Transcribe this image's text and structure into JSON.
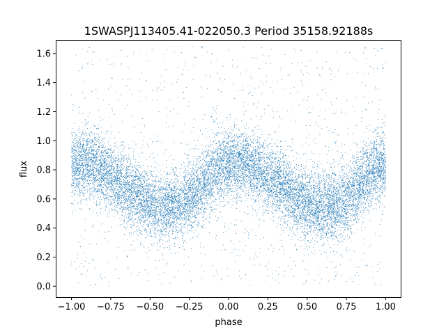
{
  "chart_data": {
    "type": "scatter",
    "title": "1SWASPJ113405.41-022050.3 Period 35158.92188s",
    "xlabel": "phase",
    "ylabel": "flux",
    "xlim": [
      -1.1,
      1.1
    ],
    "ylim": [
      -0.075,
      1.69
    ],
    "x_ticks": [
      -1.0,
      -0.75,
      -0.5,
      -0.25,
      0.0,
      0.25,
      0.5,
      0.75,
      1.0
    ],
    "x_tick_labels": [
      "−1.00",
      "−0.75",
      "−0.50",
      "−0.25",
      "0.00",
      "0.25",
      "0.50",
      "0.75",
      "1.00"
    ],
    "y_ticks": [
      0.0,
      0.2,
      0.4,
      0.6,
      0.8,
      1.0,
      1.2,
      1.4,
      1.6
    ],
    "y_tick_labels": [
      "0.0",
      "0.2",
      "0.4",
      "0.6",
      "0.8",
      "1.0",
      "1.2",
      "1.4",
      "1.6"
    ],
    "grid": false,
    "legend": "none",
    "point_color": "#1f77b4",
    "light_curve": {
      "phase": [
        -1.0,
        -0.9,
        -0.8,
        -0.7,
        -0.6,
        -0.5,
        -0.4,
        -0.3,
        -0.2,
        -0.1,
        0.0,
        0.1,
        0.2,
        0.3,
        0.4,
        0.5,
        0.6,
        0.7,
        0.8,
        0.9,
        1.0
      ],
      "flux": [
        0.84,
        0.85,
        0.79,
        0.71,
        0.63,
        0.56,
        0.54,
        0.56,
        0.65,
        0.78,
        0.84,
        0.85,
        0.79,
        0.71,
        0.63,
        0.56,
        0.54,
        0.56,
        0.65,
        0.78,
        0.84
      ],
      "scatter_sigma": 0.12,
      "outlier_fraction": 0.08,
      "n_points": 14000
    }
  }
}
